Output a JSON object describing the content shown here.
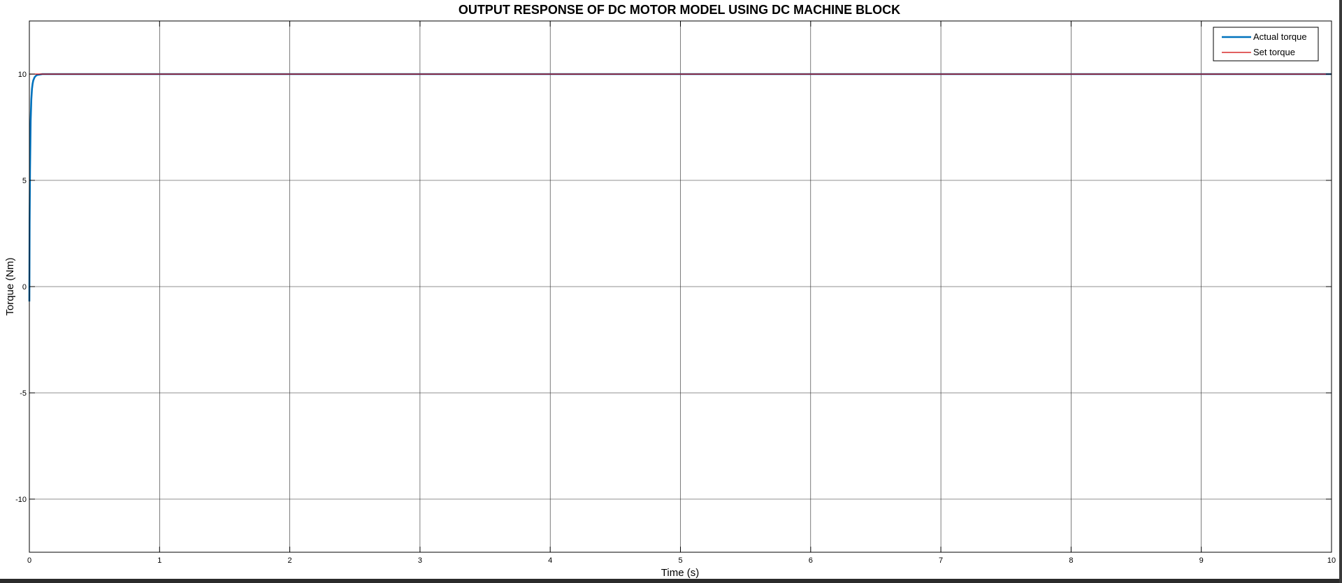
{
  "chart_data": {
    "type": "line",
    "title": "OUTPUT RESPONSE OF DC MOTOR MODEL USING DC MACHINE BLOCK",
    "xlabel": "Time (s)",
    "ylabel": "Torque (Nm)",
    "xlim": [
      0,
      10
    ],
    "ylim": [
      -12.5,
      12.5
    ],
    "xticks": [
      0,
      1,
      2,
      3,
      4,
      5,
      6,
      7,
      8,
      9,
      10
    ],
    "yticks": [
      -10,
      -5,
      0,
      5,
      10
    ],
    "grid": true,
    "legend": "top-right",
    "series": [
      {
        "name": "Actual torque",
        "color": "#0072BD",
        "x": [
          0,
          0.002,
          0.005,
          0.01,
          0.015,
          0.02,
          0.025,
          0.03,
          0.04,
          0.05,
          0.06,
          0.08,
          0.1,
          0.15,
          0.2,
          10
        ],
        "y": [
          -0.7,
          3.0,
          5.5,
          7.8,
          8.8,
          9.3,
          9.55,
          9.7,
          9.85,
          9.92,
          9.96,
          9.98,
          10.0,
          10.0,
          10.0,
          10.0
        ]
      },
      {
        "name": "Set torque",
        "color": "#D00000",
        "x": [
          0,
          0.05,
          10
        ],
        "y": [
          10,
          10,
          10
        ]
      }
    ]
  }
}
